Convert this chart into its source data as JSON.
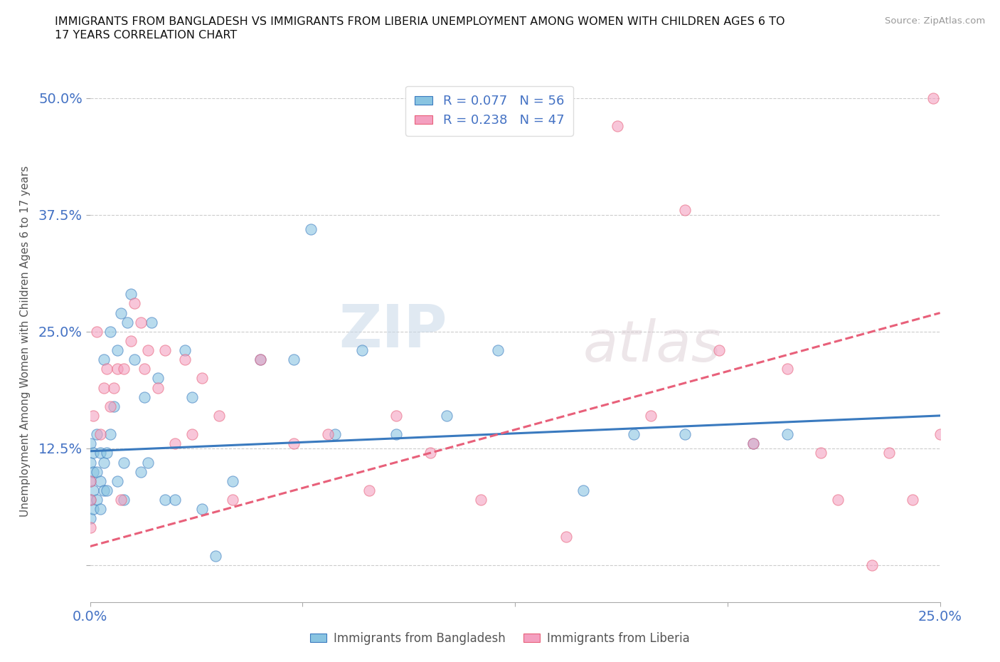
{
  "title_line1": "IMMIGRANTS FROM BANGLADESH VS IMMIGRANTS FROM LIBERIA UNEMPLOYMENT AMONG WOMEN WITH CHILDREN AGES 6 TO",
  "title_line2": "17 YEARS CORRELATION CHART",
  "source": "Source: ZipAtlas.com",
  "ylabel": "Unemployment Among Women with Children Ages 6 to 17 years",
  "xlim": [
    0.0,
    0.25
  ],
  "ylim": [
    -0.04,
    0.52
  ],
  "yticks": [
    0.0,
    0.125,
    0.25,
    0.375,
    0.5
  ],
  "ytick_labels": [
    "",
    "12.5%",
    "25.0%",
    "37.5%",
    "50.0%"
  ],
  "xticks": [
    0.0,
    0.0625,
    0.125,
    0.1875,
    0.25
  ],
  "xtick_labels": [
    "0.0%",
    "",
    "",
    "",
    "25.0%"
  ],
  "legend_r1": "R = 0.077",
  "legend_n1": "N = 56",
  "legend_r2": "R = 0.238",
  "legend_n2": "N = 47",
  "color_bangladesh": "#89c4e1",
  "color_liberia": "#f4a0c0",
  "trendline_color_bangladesh": "#3a7abf",
  "trendline_color_liberia": "#e8607a",
  "background_color": "#ffffff",
  "watermark_zip": "ZIP",
  "watermark_atlas": "atlas",
  "bangladesh_x": [
    0.0,
    0.0,
    0.0,
    0.0,
    0.0,
    0.001,
    0.001,
    0.001,
    0.001,
    0.002,
    0.002,
    0.002,
    0.003,
    0.003,
    0.003,
    0.004,
    0.004,
    0.004,
    0.005,
    0.005,
    0.006,
    0.006,
    0.007,
    0.008,
    0.008,
    0.009,
    0.01,
    0.01,
    0.011,
    0.012,
    0.013,
    0.015,
    0.016,
    0.017,
    0.018,
    0.02,
    0.022,
    0.025,
    0.028,
    0.03,
    0.033,
    0.037,
    0.042,
    0.05,
    0.06,
    0.065,
    0.072,
    0.08,
    0.09,
    0.105,
    0.12,
    0.145,
    0.16,
    0.175,
    0.195,
    0.205
  ],
  "bangladesh_y": [
    0.05,
    0.07,
    0.09,
    0.11,
    0.13,
    0.06,
    0.08,
    0.1,
    0.12,
    0.07,
    0.1,
    0.14,
    0.06,
    0.09,
    0.12,
    0.08,
    0.11,
    0.22,
    0.08,
    0.12,
    0.14,
    0.25,
    0.17,
    0.09,
    0.23,
    0.27,
    0.07,
    0.11,
    0.26,
    0.29,
    0.22,
    0.1,
    0.18,
    0.11,
    0.26,
    0.2,
    0.07,
    0.07,
    0.23,
    0.18,
    0.06,
    0.01,
    0.09,
    0.22,
    0.22,
    0.36,
    0.14,
    0.23,
    0.14,
    0.16,
    0.23,
    0.08,
    0.14,
    0.14,
    0.13,
    0.14
  ],
  "liberia_x": [
    0.0,
    0.0,
    0.0,
    0.001,
    0.002,
    0.003,
    0.004,
    0.005,
    0.006,
    0.007,
    0.008,
    0.009,
    0.01,
    0.012,
    0.013,
    0.015,
    0.016,
    0.017,
    0.02,
    0.022,
    0.025,
    0.028,
    0.03,
    0.033,
    0.038,
    0.042,
    0.05,
    0.06,
    0.07,
    0.082,
    0.09,
    0.1,
    0.115,
    0.14,
    0.155,
    0.165,
    0.175,
    0.185,
    0.195,
    0.205,
    0.215,
    0.22,
    0.23,
    0.235,
    0.242,
    0.248,
    0.25
  ],
  "liberia_y": [
    0.04,
    0.07,
    0.09,
    0.16,
    0.25,
    0.14,
    0.19,
    0.21,
    0.17,
    0.19,
    0.21,
    0.07,
    0.21,
    0.24,
    0.28,
    0.26,
    0.21,
    0.23,
    0.19,
    0.23,
    0.13,
    0.22,
    0.14,
    0.2,
    0.16,
    0.07,
    0.22,
    0.13,
    0.14,
    0.08,
    0.16,
    0.12,
    0.07,
    0.03,
    0.47,
    0.16,
    0.38,
    0.23,
    0.13,
    0.21,
    0.12,
    0.07,
    0.0,
    0.12,
    0.07,
    0.5,
    0.14
  ],
  "trendline_b_x0": 0.0,
  "trendline_b_y0": 0.122,
  "trendline_b_x1": 0.25,
  "trendline_b_y1": 0.16,
  "trendline_l_x0": 0.0,
  "trendline_l_y0": 0.02,
  "trendline_l_x1": 0.25,
  "trendline_l_y1": 0.27
}
